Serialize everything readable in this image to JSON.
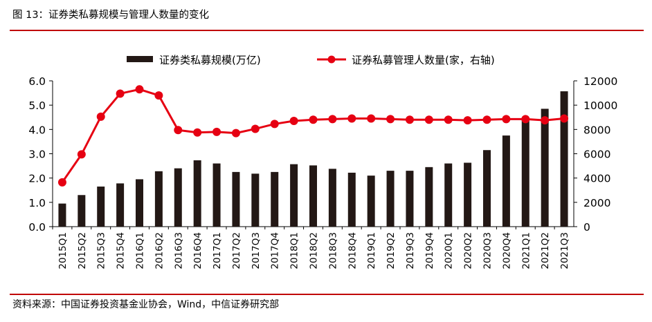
{
  "figure": {
    "title": "图 13：证券类私募规模与管理人数量的变化",
    "source": "资料来源：中国证券投资基金业协会，Wind，中信证券研究部"
  },
  "colors": {
    "bar": "#231815",
    "line": "#e60012",
    "rule": "#c00000"
  },
  "chart_data": {
    "type": "bar",
    "categories": [
      "2015Q1",
      "2015Q2",
      "2015Q3",
      "2015Q4",
      "2016Q1",
      "2016Q2",
      "2016Q3",
      "2016Q4",
      "2017Q1",
      "2017Q2",
      "2017Q3",
      "2017Q4",
      "2018Q1",
      "2018Q2",
      "2018Q3",
      "2018Q4",
      "2019Q1",
      "2019Q2",
      "2019Q3",
      "2019Q4",
      "2020Q1",
      "2020Q2",
      "2020Q3",
      "2020Q4",
      "2021Q1",
      "2021Q2",
      "2021Q3"
    ],
    "series": [
      {
        "name": "证券类私募规模(万亿)",
        "type": "bar",
        "axis": "left",
        "values": [
          0.95,
          1.3,
          1.65,
          1.78,
          1.95,
          2.28,
          2.4,
          2.73,
          2.6,
          2.25,
          2.18,
          2.25,
          2.57,
          2.52,
          2.38,
          2.22,
          2.1,
          2.3,
          2.3,
          2.45,
          2.6,
          2.63,
          3.15,
          3.75,
          4.45,
          4.85,
          5.57
        ]
      },
      {
        "name": "证券私募管理人数量(家，右轴)",
        "type": "line",
        "axis": "right",
        "values": [
          3650,
          5950,
          9050,
          10950,
          11300,
          10800,
          7950,
          7750,
          7800,
          7700,
          8050,
          8450,
          8700,
          8800,
          8850,
          8900,
          8900,
          8850,
          8800,
          8800,
          8800,
          8750,
          8800,
          8850,
          8850,
          8750,
          8900
        ]
      }
    ],
    "yleft": {
      "ylim": [
        0,
        6
      ],
      "ticks": [
        "0.0",
        "1.0",
        "2.0",
        "3.0",
        "4.0",
        "5.0",
        "6.0"
      ]
    },
    "yright": {
      "ylim": [
        0,
        12000
      ],
      "ticks": [
        "0",
        "2000",
        "4000",
        "6000",
        "8000",
        "10000",
        "12000"
      ]
    },
    "legend_position": "top",
    "grid": false
  }
}
